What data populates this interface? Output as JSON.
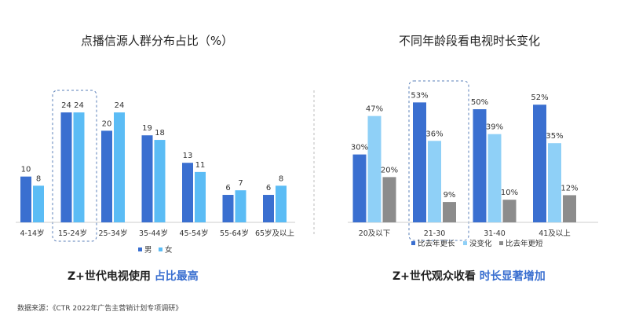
{
  "chart_data": [
    {
      "type": "bar",
      "title": "点播信源人群分布占比（%）",
      "categories": [
        "4-14岁",
        "15-24岁",
        "25-34岁",
        "35-44岁",
        "45-54岁",
        "55-64岁",
        "65岁及以上"
      ],
      "series": [
        {
          "name": "男",
          "values": [
            10,
            24,
            20,
            19,
            13,
            6,
            6
          ],
          "color": "#3a6fd0"
        },
        {
          "name": "女",
          "values": [
            8,
            24,
            24,
            18,
            11,
            7,
            8
          ],
          "color": "#5bbcf5"
        }
      ],
      "highlight_category": "15-24岁",
      "legend": "bottom",
      "grid": false
    },
    {
      "type": "bar",
      "title": "不同年龄段看电视时长变化",
      "categories": [
        "20及以下",
        "21-30",
        "31-40",
        "41及以上"
      ],
      "series": [
        {
          "name": "比去年更长",
          "values": [
            30,
            53,
            50,
            52
          ],
          "color": "#3a6fd0"
        },
        {
          "name": "没变化",
          "values": [
            47,
            36,
            39,
            35
          ],
          "color": "#8fd0f7"
        },
        {
          "name": "比去年更短",
          "values": [
            20,
            9,
            10,
            12
          ],
          "color": "#8c8c8c"
        }
      ],
      "value_suffix": "%",
      "highlight_category": "21-30",
      "legend": "bottom",
      "grid": false
    }
  ],
  "captions": {
    "left": {
      "text": "Z+世代电视使用 ",
      "highlight": "占比最高"
    },
    "right": {
      "text": "Z+世代观众收看 ",
      "highlight": "时长显著增加"
    }
  },
  "source": "数据来源：《CTR 2022年广告主营销计划专项调研》"
}
